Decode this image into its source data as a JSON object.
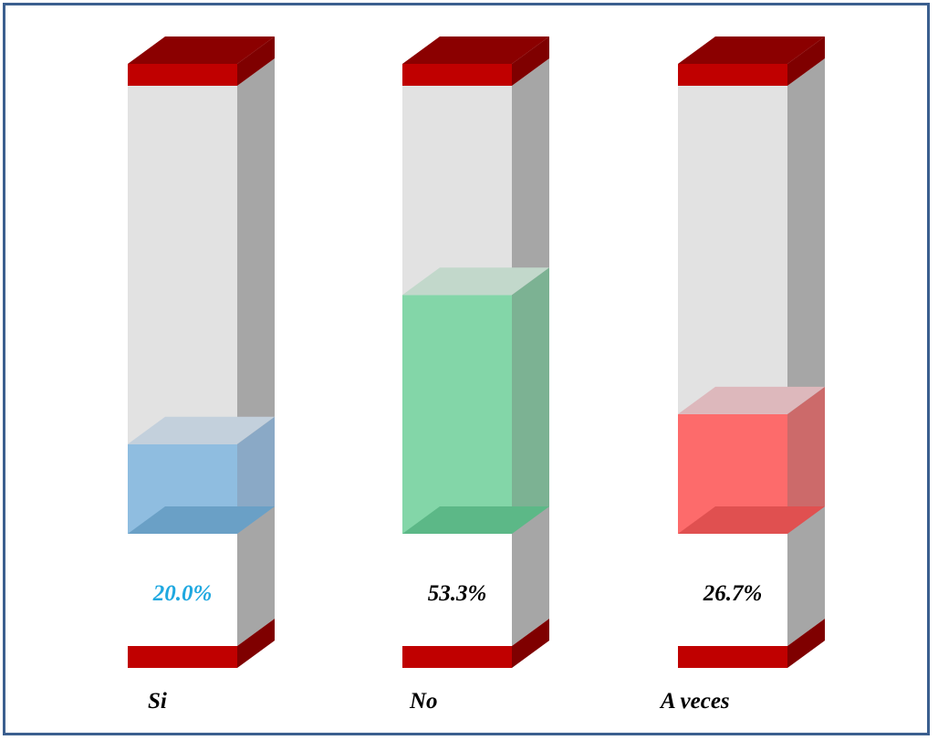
{
  "chart_data": {
    "type": "bar",
    "style": "3d-cylinder-tubes",
    "categories": [
      "Si",
      "No",
      "A veces"
    ],
    "values": [
      20.0,
      53.3,
      26.7
    ],
    "labels": [
      "20.0%",
      "53.3%",
      "26.7%"
    ],
    "ylim": [
      0,
      100
    ],
    "colors": {
      "fills": [
        "#8fbde0",
        "#83d6a8",
        "#fd6b6b"
      ],
      "fill_sides": [
        "#8aa9c6",
        "#7cb293",
        "#cc6a6a"
      ],
      "fill_tops": [
        "#c3d0dc",
        "#c2d8cb",
        "#ddb8bc"
      ],
      "fill_bottoms": [
        "#6aa0c6",
        "#5cb887",
        "#e05050"
      ],
      "label_colors": [
        "#1fa8e0",
        "#000000",
        "#000000"
      ],
      "tube_front": "#e2e2e2",
      "tube_side": "#a6a6a6",
      "cap_front": "#c00000",
      "cap_side": "#7f0000",
      "cap_top": "#8b0000",
      "frame": "#3b5f8f"
    },
    "grid": false,
    "legend": "none"
  }
}
